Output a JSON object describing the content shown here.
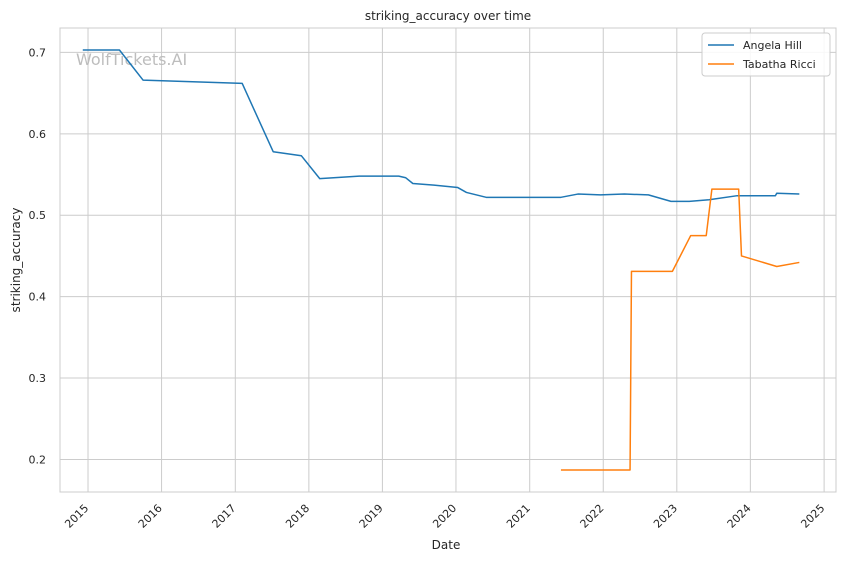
{
  "chart_data": {
    "type": "line",
    "title": "striking_accuracy over time",
    "xlabel": "Date",
    "ylabel": "striking_accuracy",
    "watermark": "WolfTickets.AI",
    "grid": true,
    "legend_position": "top-right",
    "x_ticks": [
      "2015",
      "2016",
      "2017",
      "2018",
      "2019",
      "2020",
      "2021",
      "2022",
      "2023",
      "2024",
      "2025"
    ],
    "y_ticks": [
      "0.2",
      "0.3",
      "0.4",
      "0.5",
      "0.6",
      "0.7"
    ],
    "xlim": [
      "2014-08-15",
      "2025-03-01"
    ],
    "ylim": [
      0.16,
      0.73
    ],
    "series": [
      {
        "name": "Angela Hill",
        "color": "#1f77b4",
        "points": [
          [
            "2014-12-06",
            0.703
          ],
          [
            "2015-06-06",
            0.703
          ],
          [
            "2015-10-01",
            0.666
          ],
          [
            "2017-02-04",
            0.662
          ],
          [
            "2017-07-08",
            0.578
          ],
          [
            "2017-11-25",
            0.573
          ],
          [
            "2018-02-24",
            0.545
          ],
          [
            "2018-09-08",
            0.548
          ],
          [
            "2019-03-23",
            0.548
          ],
          [
            "2019-04-27",
            0.546
          ],
          [
            "2019-06-01",
            0.539
          ],
          [
            "2019-09-14",
            0.537
          ],
          [
            "2020-01-10",
            0.534
          ],
          [
            "2020-02-22",
            0.528
          ],
          [
            "2020-05-30",
            0.522
          ],
          [
            "2020-09-19",
            0.522
          ],
          [
            "2021-06-05",
            0.522
          ],
          [
            "2021-08-28",
            0.526
          ],
          [
            "2021-12-18",
            0.525
          ],
          [
            "2022-04-16",
            0.526
          ],
          [
            "2022-08-13",
            0.525
          ],
          [
            "2022-12-03",
            0.517
          ],
          [
            "2023-03-04",
            0.517
          ],
          [
            "2023-06-10",
            0.519
          ],
          [
            "2023-10-28",
            0.524
          ],
          [
            "2024-05-04",
            0.524
          ],
          [
            "2024-05-11",
            0.527
          ],
          [
            "2024-08-31",
            0.526
          ]
        ]
      },
      {
        "name": "Tabatha Ricci",
        "color": "#ff7f0e",
        "points": [
          [
            "2021-06-05",
            0.187
          ],
          [
            "2022-05-14",
            0.187
          ],
          [
            "2022-05-21",
            0.431
          ],
          [
            "2022-12-10",
            0.431
          ],
          [
            "2023-03-11",
            0.475
          ],
          [
            "2023-05-27",
            0.475
          ],
          [
            "2023-06-24",
            0.532
          ],
          [
            "2023-11-04",
            0.532
          ],
          [
            "2023-11-18",
            0.45
          ],
          [
            "2024-05-11",
            0.437
          ],
          [
            "2024-08-31",
            0.442
          ]
        ]
      }
    ]
  }
}
